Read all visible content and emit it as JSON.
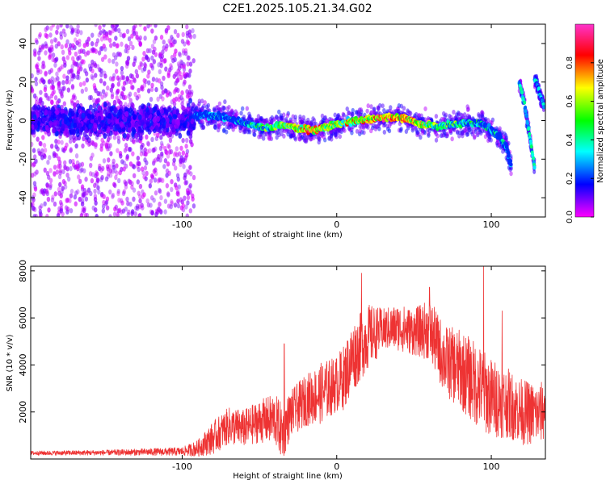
{
  "title": "C2E1.2025.105.21.34.G02",
  "chart_data": [
    {
      "type": "heatmap",
      "xlabel": "Height of straight line (km)",
      "ylabel": "Frequency (Hz)",
      "xlim": [
        -198,
        135
      ],
      "ylim": [
        -50,
        50
      ],
      "x_ticks": [
        -100,
        0,
        100
      ],
      "x_tick_labels": [
        "-100",
        "0",
        "100"
      ],
      "y_ticks": [
        -40,
        -20,
        0,
        20,
        40
      ],
      "y_tick_labels": [
        "-40",
        "-20",
        "0",
        "20",
        "40"
      ],
      "colorbar": {
        "label": "Normalized spectral amplitude",
        "range": [
          0,
          1
        ],
        "ticks": [
          0,
          0.2,
          0.4,
          0.6,
          0.8
        ],
        "tick_labels": [
          "0.0",
          "0.2",
          "0.4",
          "0.6",
          "0.8"
        ],
        "colormap": [
          "#ff00ff",
          "#0000ff",
          "#00ffff",
          "#00ff00",
          "#ffff00",
          "#ff0000",
          "#ff33cc"
        ]
      },
      "noise_region_x": [
        -198,
        -92
      ],
      "track": {
        "x": [
          -92,
          -85,
          -75,
          -65,
          -55,
          -45,
          -35,
          -25,
          -15,
          -5,
          5,
          15,
          25,
          35,
          45,
          55,
          65,
          75,
          85,
          95,
          105,
          110,
          113
        ],
        "freq": [
          2,
          3,
          2,
          0,
          -2,
          -4,
          -2,
          -4,
          -5,
          -3,
          -1,
          0,
          1,
          2,
          1,
          -2,
          -3,
          -2,
          -1,
          -2,
          -8,
          -14,
          -24
        ],
        "amplitude": [
          0.25,
          0.3,
          0.35,
          0.4,
          0.5,
          0.6,
          0.7,
          0.85,
          0.9,
          0.8,
          0.75,
          0.8,
          0.9,
          0.95,
          0.9,
          0.75,
          0.65,
          0.6,
          0.5,
          0.45,
          0.4,
          0.35,
          0.3
        ]
      },
      "side_tracks": [
        {
          "x": [
            118,
            120,
            122,
            124,
            126,
            128
          ],
          "freq": [
            20,
            14,
            6,
            -4,
            -14,
            -24
          ],
          "amplitude": 0.45
        },
        {
          "x": [
            128,
            130,
            132,
            134
          ],
          "freq": [
            22,
            18,
            12,
            8
          ],
          "amplitude": 0.4
        }
      ]
    },
    {
      "type": "line",
      "xlabel": "Height of straight line (km)",
      "ylabel": "SNR (10 * v/v)",
      "xlim": [
        -198,
        135
      ],
      "ylim": [
        0,
        8200
      ],
      "x_ticks": [
        -100,
        0,
        100
      ],
      "x_tick_labels": [
        "-100",
        "0",
        "100"
      ],
      "y_ticks": [
        2000,
        4000,
        6000,
        8000
      ],
      "y_tick_labels": [
        "2000",
        "4000",
        "6000",
        "8000"
      ],
      "series": [
        {
          "color": "#ee3333",
          "envelope_x": [
            -198,
            -150,
            -100,
            -90,
            -80,
            -70,
            -60,
            -50,
            -40,
            -35,
            -30,
            -20,
            -10,
            0,
            5,
            10,
            20,
            30,
            40,
            50,
            60,
            70,
            80,
            90,
            100,
            110,
            120,
            130,
            135
          ],
          "envelope_mean": [
            250,
            270,
            320,
            450,
            900,
            1400,
            1300,
            1600,
            1700,
            1100,
            1900,
            2500,
            2800,
            3200,
            3500,
            4300,
            5200,
            5500,
            5600,
            5400,
            5500,
            4200,
            3800,
            3200,
            2600,
            2400,
            2000,
            1900,
            2100
          ],
          "envelope_amp": [
            90,
            110,
            180,
            350,
            700,
            800,
            800,
            900,
            1100,
            1200,
            1000,
            1100,
            1300,
            1200,
            1400,
            1500,
            1400,
            900,
            1000,
            1000,
            1300,
            1500,
            1700,
            1800,
            1700,
            1500,
            1400,
            1300,
            1300
          ],
          "peaks": [
            {
              "x": -34,
              "y": 4900
            },
            {
              "x": 16,
              "y": 7900
            },
            {
              "x": 60,
              "y": 7300
            },
            {
              "x": 95,
              "y": 8200
            },
            {
              "x": 107,
              "y": 6300
            }
          ]
        }
      ]
    }
  ]
}
